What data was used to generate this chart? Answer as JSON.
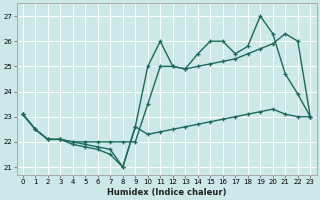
{
  "xlabel": "Humidex (Indice chaleur)",
  "bg_color": "#cce8e8",
  "grid_color": "#ffffff",
  "line_color": "#1a6b5a",
  "xlim": [
    -0.5,
    23.5
  ],
  "ylim": [
    20.7,
    27.5
  ],
  "yticks": [
    21,
    22,
    23,
    24,
    25,
    26,
    27
  ],
  "xticks": [
    0,
    1,
    2,
    3,
    4,
    5,
    6,
    7,
    8,
    9,
    10,
    11,
    12,
    13,
    14,
    15,
    16,
    17,
    18,
    19,
    20,
    21,
    22,
    23
  ],
  "line1_x": [
    0,
    1,
    2,
    3,
    4,
    5,
    6,
    7,
    8,
    9,
    10,
    11,
    12,
    13,
    14,
    15,
    16,
    17,
    18,
    19,
    20,
    21,
    22,
    23
  ],
  "line1_y": [
    23.1,
    22.5,
    22.1,
    22.1,
    21.9,
    21.8,
    21.7,
    21.5,
    21.0,
    22.6,
    22.3,
    22.4,
    22.5,
    22.6,
    22.7,
    22.8,
    22.9,
    23.0,
    23.1,
    23.2,
    23.3,
    23.1,
    23.0,
    23.0
  ],
  "line2_x": [
    0,
    1,
    2,
    3,
    4,
    5,
    6,
    7,
    8,
    9,
    10,
    11,
    12,
    13,
    14,
    15,
    16,
    17,
    18,
    19,
    20,
    21,
    22,
    23
  ],
  "line2_y": [
    23.1,
    22.5,
    22.1,
    22.1,
    22.0,
    22.0,
    22.0,
    22.0,
    22.0,
    22.0,
    23.5,
    25.0,
    25.0,
    24.9,
    25.0,
    25.1,
    25.2,
    25.3,
    25.5,
    25.7,
    25.9,
    26.3,
    26.0,
    23.0
  ],
  "line3_x": [
    0,
    1,
    2,
    3,
    4,
    5,
    6,
    7,
    8,
    9,
    10,
    11,
    12,
    13,
    14,
    15,
    16,
    17,
    18,
    19,
    20,
    21,
    22,
    23
  ],
  "line3_y": [
    23.1,
    22.5,
    22.1,
    22.1,
    22.0,
    21.9,
    21.8,
    21.7,
    21.0,
    22.6,
    25.0,
    26.0,
    25.0,
    24.9,
    25.5,
    26.0,
    26.0,
    25.5,
    25.8,
    27.0,
    26.3,
    24.7,
    23.9,
    23.0
  ],
  "marker_size": 3.5,
  "line_width": 1.0
}
